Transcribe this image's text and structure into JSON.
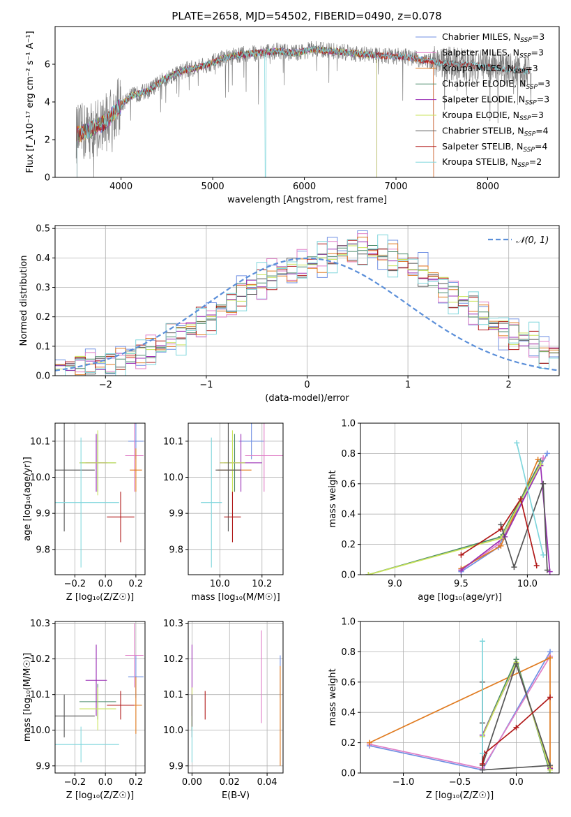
{
  "title": "PLATE=2658, MJD=54502, FIBERID=0490, z=0.078",
  "colors": {
    "Chabrier MILES": "#6f8fe3",
    "Salpeter MILES": "#e07fc7",
    "Kroupa MILES": "#e07b20",
    "Chabrier ELODIE": "#4a8a6a",
    "Salpeter ELODIE": "#9a2fb5",
    "Kroupa ELODIE": "#c9e35a",
    "Chabrier STELIB": "#555555",
    "Salpeter STELIB": "#b01818",
    "Kroupa STELIB": "#7fd6dc",
    "data": "#808080",
    "normal": "#5b8fd9",
    "grid": "#b0b0b0"
  },
  "chart_data": [
    {
      "id": "spectrum",
      "type": "line",
      "xlabel": "wavelength [Angstrom, rest frame]",
      "ylabel": "Flux [f_λ10⁻¹⁷ erg cm⁻² s⁻¹ A⁻¹]",
      "xlim": [
        3280,
        8780
      ],
      "ylim": [
        0,
        8
      ],
      "xticks": [
        4000,
        5000,
        6000,
        7000,
        8000
      ],
      "yticks": [
        0,
        2,
        4,
        6
      ],
      "grid": false,
      "legend": "right",
      "legend_entries": [
        "Chabrier MILES, N_SSP=3",
        "Salpeter MILES, N_SSP=3",
        "Kroupa MILES, N_SSP=3",
        "Chabrier ELODIE, N_SSP=3",
        "Salpeter ELODIE, N_SSP=3",
        "Kroupa ELODIE, N_SSP=3",
        "Chabrier STELIB, N_SSP=4",
        "Salpeter STELIB, N_SSP=4",
        "Kroupa STELIB, N_SSP=2"
      ],
      "continuum": {
        "wavelength": [
          3550,
          3700,
          3850,
          3950,
          4100,
          4300,
          4500,
          4700,
          4900,
          5100,
          5300,
          5500,
          5700,
          5900,
          6100,
          6300,
          6500,
          6700,
          6900,
          7100,
          7300,
          7450,
          7700,
          7900,
          8100,
          8300,
          8450
        ],
        "flux": [
          2.3,
          2.6,
          3.0,
          3.6,
          4.3,
          4.6,
          5.3,
          5.7,
          5.9,
          6.3,
          6.5,
          6.6,
          6.7,
          6.6,
          6.8,
          6.7,
          6.6,
          6.5,
          6.45,
          6.4,
          6.2,
          6.1,
          6.0,
          5.9,
          5.8,
          5.7,
          5.6
        ]
      },
      "dropouts": [
        {
          "series": "Kroupa STELIB",
          "wavelength": 5575
        },
        {
          "series": "Kroupa ELODIE",
          "wavelength": 6800
        },
        {
          "series": "Kroupa MILES",
          "wavelength": 7420
        }
      ]
    },
    {
      "id": "residual-histogram",
      "type": "line",
      "xlabel": "(data-model)/error",
      "ylabel": "Normed distribution",
      "xlim": [
        -2.5,
        2.5
      ],
      "ylim": [
        0,
        0.51
      ],
      "xticks": [
        -2,
        -1,
        0,
        1,
        2
      ],
      "yticks": [
        0.0,
        0.1,
        0.2,
        0.3,
        0.4,
        0.5
      ],
      "grid": true,
      "legend": "top-right",
      "normal_label": "𝒩(0, 1)",
      "bin_width": 0.1,
      "base_counts": [
        0.02,
        0.025,
        0.03,
        0.035,
        0.04,
        0.045,
        0.055,
        0.065,
        0.075,
        0.09,
        0.105,
        0.12,
        0.14,
        0.16,
        0.18,
        0.2,
        0.22,
        0.25,
        0.28,
        0.3,
        0.32,
        0.34,
        0.35,
        0.36,
        0.37,
        0.38,
        0.39,
        0.41,
        0.42,
        0.43,
        0.43,
        0.42,
        0.41,
        0.4,
        0.39,
        0.37,
        0.35,
        0.33,
        0.3,
        0.28,
        0.26,
        0.23,
        0.2,
        0.18,
        0.16,
        0.14,
        0.12,
        0.11,
        0.09,
        0.08
      ]
    },
    {
      "id": "age-vs-Z",
      "type": "scatter",
      "xlabel": "Z [log₁₀(Z/Z☉)]",
      "ylabel": "age  [log₁₀(age/yr)]",
      "xlim": [
        -0.33,
        0.26
      ],
      "ylim": [
        9.73,
        10.15
      ],
      "xticks": [
        -0.2,
        0.0,
        0.2
      ],
      "yticks": [
        9.8,
        9.9,
        10.0,
        10.1
      ],
      "grid": true,
      "points": [
        {
          "series": "Chabrier MILES",
          "x": 0.2,
          "y": 10.1,
          "xerr": 0.05,
          "yerr": 0.05
        },
        {
          "series": "Salpeter MILES",
          "x": 0.19,
          "y": 10.06,
          "xerr": 0.06,
          "yerr": 0.1
        },
        {
          "series": "Kroupa MILES",
          "x": 0.2,
          "y": 10.02,
          "xerr": 0.04,
          "yerr": 0.06
        },
        {
          "series": "Chabrier ELODIE",
          "x": -0.05,
          "y": 10.04,
          "xerr": 0.12,
          "yerr": 0.08
        },
        {
          "series": "Salpeter ELODIE",
          "x": -0.06,
          "y": 10.04,
          "xerr": 0.07,
          "yerr": 0.08
        },
        {
          "series": "Kroupa ELODIE",
          "x": -0.05,
          "y": 10.04,
          "xerr": 0.12,
          "yerr": 0.09
        },
        {
          "series": "Chabrier STELIB",
          "x": -0.27,
          "y": 10.02,
          "xerr": 0.2,
          "yerr": 0.17
        },
        {
          "series": "Salpeter STELIB",
          "x": 0.1,
          "y": 9.89,
          "xerr": 0.09,
          "yerr": 0.07
        },
        {
          "series": "Kroupa STELIB",
          "x": -0.16,
          "y": 9.93,
          "xerr": 0.25,
          "yerr": 0.18
        }
      ]
    },
    {
      "id": "age-vs-mass",
      "type": "scatter",
      "xlabel": "mass [log₁₀(M/M☉)]",
      "ylabel": "",
      "xlim": [
        9.85,
        10.3
      ],
      "ylim": [
        9.73,
        10.15
      ],
      "xticks": [
        10.0,
        10.2
      ],
      "yticks": [
        9.8,
        9.9,
        10.0,
        10.1
      ],
      "grid": true,
      "points": [
        {
          "series": "Chabrier MILES",
          "x": 10.15,
          "y": 10.1,
          "xerr": 0.06,
          "yerr": 0.05
        },
        {
          "series": "Salpeter MILES",
          "x": 10.21,
          "y": 10.06,
          "xerr": 0.09,
          "yerr": 0.1
        },
        {
          "series": "Kroupa MILES",
          "x": 10.07,
          "y": 10.02,
          "xerr": 0.08,
          "yerr": 0.06
        },
        {
          "series": "Chabrier ELODIE",
          "x": 10.07,
          "y": 10.04,
          "xerr": 0.05,
          "yerr": 0.08
        },
        {
          "series": "Salpeter ELODIE",
          "x": 10.1,
          "y": 10.04,
          "xerr": 0.1,
          "yerr": 0.08
        },
        {
          "series": "Kroupa ELODIE",
          "x": 10.06,
          "y": 10.04,
          "xerr": 0.06,
          "yerr": 0.09
        },
        {
          "series": "Chabrier STELIB",
          "x": 10.04,
          "y": 10.02,
          "xerr": 0.06,
          "yerr": 0.17
        },
        {
          "series": "Salpeter STELIB",
          "x": 10.06,
          "y": 9.89,
          "xerr": 0.04,
          "yerr": 0.07
        },
        {
          "series": "Kroupa STELIB",
          "x": 9.96,
          "y": 9.93,
          "xerr": 0.05,
          "yerr": 0.18
        }
      ]
    },
    {
      "id": "mass-weight-vs-age",
      "type": "line",
      "xlabel": "age  [log₁₀(age/yr)]",
      "ylabel": "mass weight",
      "xlim": [
        8.74,
        10.24
      ],
      "ylim": [
        0,
        1.0
      ],
      "xticks": [
        9.0,
        9.5,
        10.0
      ],
      "yticks": [
        0.0,
        0.2,
        0.4,
        0.6,
        0.8,
        1.0
      ],
      "grid": true,
      "series": [
        {
          "name": "Chabrier MILES",
          "x": [
            9.5,
            9.78,
            10.15
          ],
          "y": [
            0.02,
            0.18,
            0.8
          ]
        },
        {
          "name": "Salpeter MILES",
          "x": [
            9.5,
            9.78,
            10.12
          ],
          "y": [
            0.03,
            0.2,
            0.77
          ]
        },
        {
          "name": "Kroupa MILES",
          "x": [
            9.5,
            9.8,
            10.08
          ],
          "y": [
            0.04,
            0.19,
            0.76
          ]
        },
        {
          "name": "Chabrier ELODIE",
          "x": [
            8.8,
            9.8,
            10.1
          ],
          "y": [
            0.0,
            0.25,
            0.75
          ]
        },
        {
          "name": "Salpeter ELODIE",
          "x": [
            9.5,
            9.83,
            10.1,
            10.17
          ],
          "y": [
            0.03,
            0.25,
            0.72,
            0.02
          ]
        },
        {
          "name": "Kroupa ELODIE",
          "x": [
            8.8,
            9.8,
            10.1
          ],
          "y": [
            0.0,
            0.24,
            0.73
          ]
        },
        {
          "name": "Chabrier STELIB",
          "x": [
            9.8,
            9.9,
            10.12,
            10.15
          ],
          "y": [
            0.33,
            0.05,
            0.6,
            0.03
          ]
        },
        {
          "name": "Salpeter STELIB",
          "x": [
            9.5,
            9.8,
            9.95,
            10.07
          ],
          "y": [
            0.13,
            0.3,
            0.5,
            0.06
          ]
        },
        {
          "name": "Kroupa STELIB",
          "x": [
            9.92,
            10.12
          ],
          "y": [
            0.87,
            0.13
          ]
        }
      ]
    },
    {
      "id": "mass-vs-Z",
      "type": "scatter",
      "xlabel": "Z [log₁₀(Z/Z☉)]",
      "ylabel": "mass [log₁₀(M/M☉)]",
      "xlim": [
        -0.33,
        0.26
      ],
      "ylim": [
        9.88,
        10.305
      ],
      "xticks": [
        -0.2,
        0.0,
        0.2
      ],
      "yticks": [
        9.9,
        10.0,
        10.1,
        10.2,
        10.3
      ],
      "grid": true,
      "points": [
        {
          "series": "Chabrier MILES",
          "x": 0.2,
          "y": 10.15,
          "xerr": 0.05,
          "yerr": 0.06
        },
        {
          "series": "Salpeter MILES",
          "x": 0.19,
          "y": 10.21,
          "xerr": 0.06,
          "yerr": 0.09
        },
        {
          "series": "Kroupa MILES",
          "x": 0.2,
          "y": 10.07,
          "xerr": 0.04,
          "yerr": 0.08
        },
        {
          "series": "Chabrier ELODIE",
          "x": -0.05,
          "y": 10.08,
          "xerr": 0.12,
          "yerr": 0.05
        },
        {
          "series": "Salpeter ELODIE",
          "x": -0.06,
          "y": 10.14,
          "xerr": 0.07,
          "yerr": 0.1
        },
        {
          "series": "Kroupa ELODIE",
          "x": -0.05,
          "y": 10.06,
          "xerr": 0.12,
          "yerr": 0.06
        },
        {
          "series": "Chabrier STELIB",
          "x": -0.27,
          "y": 10.04,
          "xerr": 0.2,
          "yerr": 0.06
        },
        {
          "series": "Salpeter STELIB",
          "x": 0.1,
          "y": 10.07,
          "xerr": 0.09,
          "yerr": 0.04
        },
        {
          "series": "Kroupa STELIB",
          "x": -0.16,
          "y": 9.96,
          "xerr": 0.25,
          "yerr": 0.05
        }
      ]
    },
    {
      "id": "mass-vs-EBV",
      "type": "scatter",
      "xlabel": "E(B-V)",
      "ylabel": "",
      "xlim": [
        -0.002,
        0.0485
      ],
      "ylim": [
        9.88,
        10.305
      ],
      "xticks": [
        0.0,
        0.02,
        0.04
      ],
      "yticks": [
        9.9,
        10.0,
        10.1,
        10.2,
        10.3
      ],
      "grid": true,
      "points": [
        {
          "series": "Chabrier MILES",
          "x": 0.047,
          "y": 10.15,
          "xerr": 0,
          "yerr": 0.06
        },
        {
          "series": "Salpeter MILES",
          "x": 0.037,
          "y": 10.15,
          "xerr": 0,
          "yerr": 0.13
        },
        {
          "series": "Kroupa MILES",
          "x": 0.047,
          "y": 10.04,
          "xerr": 0,
          "yerr": 0.14
        },
        {
          "series": "Chabrier ELODIE",
          "x": 0.0,
          "y": 10.05,
          "xerr": 0,
          "yerr": 0.05
        },
        {
          "series": "Salpeter ELODIE",
          "x": 0.0,
          "y": 10.14,
          "xerr": 0,
          "yerr": 0.1
        },
        {
          "series": "Kroupa ELODIE",
          "x": 0.0,
          "y": 10.06,
          "xerr": 0,
          "yerr": 0.06
        },
        {
          "series": "Chabrier STELIB",
          "x": 0.0,
          "y": 10.04,
          "xerr": 0,
          "yerr": 0.06
        },
        {
          "series": "Salpeter STELIB",
          "x": 0.007,
          "y": 10.07,
          "xerr": 0,
          "yerr": 0.04
        },
        {
          "series": "Kroupa STELIB",
          "x": 0.0,
          "y": 9.96,
          "xerr": 0,
          "yerr": 0.05
        }
      ]
    },
    {
      "id": "mass-weight-vs-Z",
      "type": "line",
      "xlabel": "Z [log₁₀(Z/Z☉)]",
      "ylabel": "mass weight",
      "xlim": [
        -1.38,
        0.38
      ],
      "ylim": [
        0,
        1.0
      ],
      "xticks": [
        -1.0,
        -0.5,
        0.0
      ],
      "yticks": [
        0.0,
        0.2,
        0.4,
        0.6,
        0.8,
        1.0
      ],
      "grid": true,
      "series": [
        {
          "name": "Chabrier MILES",
          "x": [
            -1.3,
            -0.3,
            0.3
          ],
          "y": [
            0.18,
            0.02,
            0.8
          ]
        },
        {
          "name": "Salpeter MILES",
          "x": [
            -1.3,
            -0.3,
            0.3
          ],
          "y": [
            0.19,
            0.03,
            0.77
          ]
        },
        {
          "name": "Kroupa MILES",
          "x": [
            -1.3,
            0.3,
            0.3
          ],
          "y": [
            0.2,
            0.76,
            0.04
          ]
        },
        {
          "name": "Chabrier ELODIE",
          "x": [
            -0.3,
            0.0,
            0.3
          ],
          "y": [
            0.25,
            0.75,
            0.0
          ]
        },
        {
          "name": "Salpeter ELODIE",
          "x": [
            -0.3,
            0.0,
            0.3
          ],
          "y": [
            0.25,
            0.72,
            0.03
          ]
        },
        {
          "name": "Kroupa ELODIE",
          "x": [
            -0.3,
            0.0,
            0.3
          ],
          "y": [
            0.24,
            0.73,
            0.02
          ]
        },
        {
          "name": "Chabrier STELIB",
          "x": [
            -0.3,
            -0.3,
            -0.3,
            0.0,
            0.3,
            -0.3
          ],
          "y": [
            0.6,
            0.33,
            0.05,
            0.72,
            0.05,
            0.02
          ]
        },
        {
          "name": "Salpeter STELIB",
          "x": [
            -0.3,
            -0.28,
            0.0,
            0.3
          ],
          "y": [
            0.06,
            0.13,
            0.3,
            0.5
          ]
        },
        {
          "name": "Kroupa STELIB",
          "x": [
            -0.3,
            -0.3
          ],
          "y": [
            0.87,
            0.13
          ]
        }
      ]
    }
  ]
}
